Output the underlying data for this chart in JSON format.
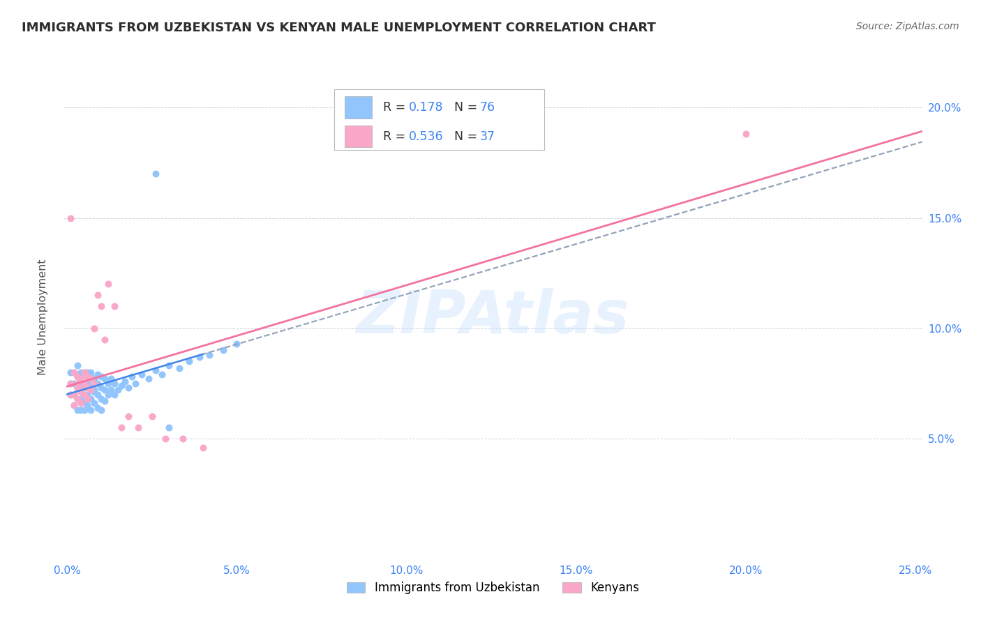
{
  "title": "IMMIGRANTS FROM UZBEKISTAN VS KENYAN MALE UNEMPLOYMENT CORRELATION CHART",
  "source": "Source: ZipAtlas.com",
  "ylabel": "Male Unemployment",
  "legend_label1": "Immigrants from Uzbekistan",
  "legend_label2": "Kenyans",
  "r1": "0.178",
  "n1": "76",
  "r2": "0.536",
  "n2": "37",
  "xlim": [
    -0.001,
    0.252
  ],
  "ylim": [
    -0.005,
    0.215
  ],
  "xticks": [
    0.0,
    0.05,
    0.1,
    0.15,
    0.2,
    0.25
  ],
  "xticklabels": [
    "0.0%",
    "5.0%",
    "10.0%",
    "15.0%",
    "20.0%",
    "25.0%"
  ],
  "yticks": [
    0.05,
    0.1,
    0.15,
    0.2
  ],
  "yticklabels": [
    "5.0%",
    "10.0%",
    "15.0%",
    "20.0%"
  ],
  "color_blue": "#93C5FD",
  "color_pink": "#F9A8C9",
  "color_pink_line": "#F472A0",
  "color_dashed": "#94A3B8",
  "watermark_color": "#BFDBFE",
  "background_color": "#FFFFFF",
  "grid_color": "#CBD5E1",
  "tick_color": "#3B82F6",
  "blue_x": [
    0.001,
    0.001,
    0.001,
    0.002,
    0.002,
    0.002,
    0.002,
    0.003,
    0.003,
    0.003,
    0.003,
    0.003,
    0.003,
    0.004,
    0.004,
    0.004,
    0.004,
    0.004,
    0.004,
    0.005,
    0.005,
    0.005,
    0.005,
    0.005,
    0.005,
    0.006,
    0.006,
    0.006,
    0.006,
    0.006,
    0.006,
    0.007,
    0.007,
    0.007,
    0.007,
    0.007,
    0.008,
    0.008,
    0.008,
    0.008,
    0.009,
    0.009,
    0.009,
    0.009,
    0.01,
    0.01,
    0.01,
    0.01,
    0.011,
    0.011,
    0.011,
    0.012,
    0.012,
    0.013,
    0.013,
    0.014,
    0.014,
    0.015,
    0.016,
    0.017,
    0.018,
    0.019,
    0.02,
    0.022,
    0.024,
    0.026,
    0.028,
    0.03,
    0.033,
    0.036,
    0.039,
    0.042,
    0.046,
    0.05,
    0.026,
    0.03
  ],
  "blue_y": [
    0.075,
    0.08,
    0.07,
    0.065,
    0.075,
    0.08,
    0.07,
    0.078,
    0.068,
    0.073,
    0.078,
    0.063,
    0.083,
    0.075,
    0.08,
    0.068,
    0.073,
    0.078,
    0.063,
    0.067,
    0.073,
    0.079,
    0.063,
    0.075,
    0.08,
    0.07,
    0.075,
    0.08,
    0.065,
    0.07,
    0.075,
    0.068,
    0.073,
    0.078,
    0.063,
    0.08,
    0.072,
    0.077,
    0.066,
    0.071,
    0.07,
    0.075,
    0.064,
    0.079,
    0.068,
    0.073,
    0.078,
    0.063,
    0.067,
    0.072,
    0.077,
    0.07,
    0.075,
    0.072,
    0.077,
    0.07,
    0.075,
    0.072,
    0.074,
    0.076,
    0.073,
    0.078,
    0.075,
    0.079,
    0.077,
    0.081,
    0.079,
    0.083,
    0.082,
    0.085,
    0.087,
    0.088,
    0.09,
    0.093,
    0.17,
    0.055
  ],
  "pink_x": [
    0.001,
    0.001,
    0.002,
    0.002,
    0.002,
    0.003,
    0.003,
    0.003,
    0.003,
    0.004,
    0.004,
    0.004,
    0.004,
    0.005,
    0.005,
    0.005,
    0.006,
    0.006,
    0.006,
    0.007,
    0.007,
    0.008,
    0.008,
    0.009,
    0.01,
    0.011,
    0.012,
    0.014,
    0.016,
    0.018,
    0.021,
    0.025,
    0.029,
    0.034,
    0.04,
    0.2,
    0.001
  ],
  "pink_y": [
    0.075,
    0.07,
    0.08,
    0.065,
    0.07,
    0.075,
    0.068,
    0.073,
    0.078,
    0.072,
    0.077,
    0.066,
    0.071,
    0.07,
    0.075,
    0.08,
    0.073,
    0.078,
    0.068,
    0.072,
    0.077,
    0.075,
    0.1,
    0.115,
    0.11,
    0.095,
    0.12,
    0.11,
    0.055,
    0.06,
    0.055,
    0.06,
    0.05,
    0.05,
    0.046,
    0.188,
    0.15
  ]
}
